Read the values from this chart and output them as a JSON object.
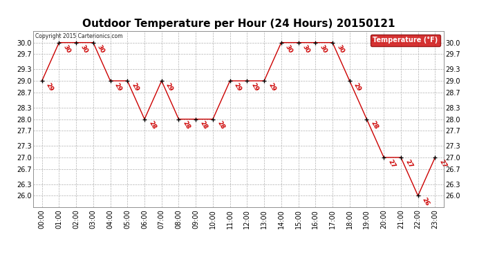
{
  "title": "Outdoor Temperature per Hour (24 Hours) 20150121",
  "copyright_text": "Copyright 2015 Carterionics.com",
  "legend_label": "Temperature (°F)",
  "hours": [
    "00:00",
    "01:00",
    "02:00",
    "03:00",
    "04:00",
    "05:00",
    "06:00",
    "07:00",
    "08:00",
    "09:00",
    "10:00",
    "11:00",
    "12:00",
    "13:00",
    "14:00",
    "15:00",
    "16:00",
    "17:00",
    "18:00",
    "19:00",
    "20:00",
    "21:00",
    "22:00",
    "23:00"
  ],
  "temps": [
    29,
    30,
    30,
    30,
    29,
    29,
    28,
    29,
    28,
    28,
    28,
    29,
    29,
    29,
    30,
    30,
    30,
    30,
    29,
    28,
    27,
    27,
    26,
    27
  ],
  "line_color": "#cc0000",
  "marker_color": "#000000",
  "label_color": "#cc0000",
  "background_color": "#ffffff",
  "grid_color": "#b0b0b0",
  "ylim_min": 25.7,
  "ylim_max": 30.3,
  "yticks": [
    26.0,
    26.3,
    26.7,
    27.0,
    27.3,
    27.7,
    28.0,
    28.3,
    28.7,
    29.0,
    29.3,
    29.7,
    30.0
  ],
  "title_fontsize": 11,
  "tick_fontsize": 7,
  "label_fontsize": 6.5,
  "legend_bg": "#cc0000",
  "legend_text_color": "#ffffff",
  "fig_width": 6.9,
  "fig_height": 3.75,
  "dpi": 100
}
